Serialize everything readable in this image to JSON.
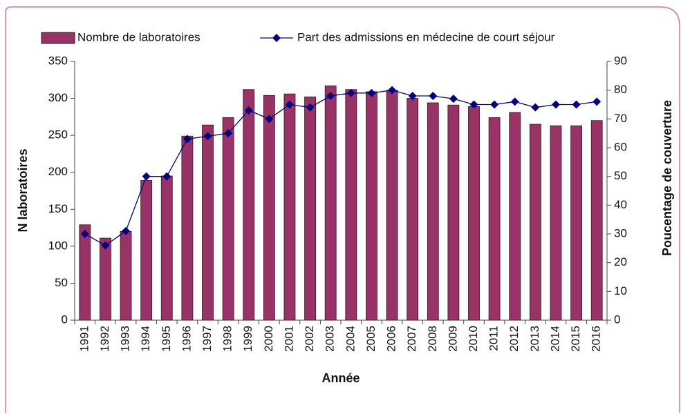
{
  "chart_data": {
    "type": "bar",
    "x_label": "Année",
    "y_label": "N laboratoires",
    "y2_label": "Poucentage  de couverture",
    "categories": [
      "1991",
      "1992",
      "1993",
      "1994",
      "1995",
      "1996",
      "1997",
      "1998",
      "1999",
      "2000",
      "2001",
      "2002",
      "2003",
      "2004",
      "2005",
      "2006",
      "2007",
      "2008",
      "2009",
      "2010",
      "2011",
      "2012",
      "2013",
      "2014",
      "2015",
      "2016"
    ],
    "series": [
      {
        "name": "Nombre de laboratoires",
        "type": "bar",
        "color": "#993366",
        "values": [
          129,
          111,
          120,
          189,
          195,
          249,
          264,
          274,
          312,
          304,
          306,
          302,
          317,
          312,
          309,
          311,
          300,
          294,
          291,
          289,
          274,
          281,
          265,
          263,
          263,
          270
        ]
      },
      {
        "name": "Part des admissions en médecine de court séjour",
        "type": "line",
        "axis": "y2",
        "color": "#000080",
        "values": [
          30,
          26,
          31,
          50,
          50,
          63,
          64,
          65,
          73,
          70,
          75,
          74,
          78,
          79,
          79,
          80,
          78,
          78,
          77,
          75,
          75,
          76,
          74,
          75,
          75,
          76
        ]
      }
    ],
    "ylim": [
      0,
      350
    ],
    "yticks": [
      0,
      50,
      100,
      150,
      200,
      250,
      300,
      350
    ],
    "y2lim": [
      0,
      90
    ],
    "y2ticks": [
      0,
      10,
      20,
      30,
      40,
      50,
      60,
      70,
      80,
      90
    ],
    "legend": "top"
  }
}
